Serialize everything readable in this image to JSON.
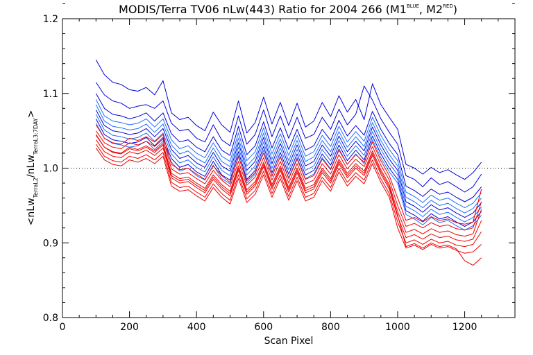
{
  "chart_data": {
    "type": "line",
    "title_parts": {
      "main": "MODIS/Terra TV06 nLw(443) Ratio for 2004 266 (M1",
      "sup1": "BLUE",
      "mid": ", M2",
      "sup2": "RED",
      "end": ")"
    },
    "xlabel": "Scan Pixel",
    "ylabel_parts": {
      "a": "<nLw",
      "sub1": "TerraL2",
      "b": "/nLw",
      "sub2": "TerraL3:7DAY",
      "c": ">"
    },
    "xlim": [
      0,
      1350
    ],
    "ylim": [
      0.8,
      1.2
    ],
    "xticks": [
      0,
      200,
      400,
      600,
      800,
      1000,
      1200
    ],
    "yticks": [
      0.8,
      0.9,
      1.0,
      1.1,
      1.2
    ],
    "ytick_labels": [
      "0.8",
      "0.9",
      "1.0",
      "1.1",
      "1.2"
    ],
    "reference_line": {
      "y": 1.0,
      "style": "dotted"
    },
    "series_colors": {
      "blue": "#0000dd",
      "light_blue": "#1e6eff",
      "red": "#ee0000"
    },
    "x": [
      100,
      125,
      150,
      175,
      200,
      225,
      250,
      275,
      300,
      325,
      350,
      375,
      400,
      425,
      450,
      475,
      500,
      525,
      550,
      575,
      600,
      625,
      650,
      675,
      700,
      725,
      750,
      775,
      800,
      825,
      850,
      875,
      900,
      925,
      950,
      975,
      1000,
      1025,
      1050,
      1075,
      1100,
      1125,
      1150,
      1175,
      1200,
      1225,
      1250
    ],
    "series": [
      {
        "color": "blue",
        "values": [
          1.145,
          1.125,
          1.115,
          1.112,
          1.105,
          1.103,
          1.108,
          1.098,
          1.117,
          1.074,
          1.065,
          1.068,
          1.057,
          1.05,
          1.075,
          1.058,
          1.048,
          1.09,
          1.047,
          1.061,
          1.095,
          1.059,
          1.088,
          1.057,
          1.087,
          1.055,
          1.063,
          1.088,
          1.069,
          1.097,
          1.075,
          1.092,
          1.065,
          1.113,
          1.085,
          1.068,
          1.052,
          1.005,
          1.0,
          0.992,
          1.001,
          0.994,
          0.998,
          0.991,
          0.985,
          0.994,
          1.008
        ]
      },
      {
        "color": "blue",
        "values": [
          1.115,
          1.098,
          1.09,
          1.087,
          1.08,
          1.083,
          1.085,
          1.08,
          1.09,
          1.06,
          1.05,
          1.052,
          1.04,
          1.035,
          1.058,
          1.038,
          1.03,
          1.07,
          1.032,
          1.045,
          1.078,
          1.042,
          1.07,
          1.04,
          1.068,
          1.04,
          1.045,
          1.068,
          1.052,
          1.079,
          1.058,
          1.072,
          1.11,
          1.091,
          1.066,
          1.048,
          1.032,
          0.99,
          0.985,
          0.975,
          0.987,
          0.978,
          0.982,
          0.975,
          0.968,
          0.975,
          0.992
        ]
      },
      {
        "color": "blue",
        "values": [
          1.1,
          1.08,
          1.072,
          1.07,
          1.066,
          1.069,
          1.074,
          1.063,
          1.074,
          1.046,
          1.035,
          1.038,
          1.028,
          1.022,
          1.042,
          1.024,
          1.017,
          1.056,
          1.018,
          1.03,
          1.062,
          1.027,
          1.054,
          1.025,
          1.052,
          1.024,
          1.03,
          1.052,
          1.037,
          1.064,
          1.043,
          1.057,
          1.044,
          1.076,
          1.052,
          1.033,
          1.018,
          0.976,
          0.97,
          0.962,
          0.972,
          0.965,
          0.968,
          0.961,
          0.955,
          0.961,
          0.975
        ]
      },
      {
        "color": "light_blue",
        "values": [
          1.092,
          1.07,
          1.063,
          1.061,
          1.058,
          1.06,
          1.066,
          1.055,
          1.066,
          1.038,
          1.026,
          1.03,
          1.02,
          1.014,
          1.034,
          1.016,
          1.009,
          1.047,
          1.01,
          1.022,
          1.054,
          1.019,
          1.046,
          1.017,
          1.044,
          1.016,
          1.022,
          1.044,
          1.029,
          1.056,
          1.035,
          1.049,
          1.036,
          1.068,
          1.044,
          1.025,
          1.01,
          0.968,
          0.962,
          0.954,
          0.964,
          0.957,
          0.96,
          0.953,
          0.947,
          0.953,
          0.967
        ]
      },
      {
        "color": "light_blue",
        "values": [
          1.085,
          1.063,
          1.056,
          1.054,
          1.051,
          1.053,
          1.059,
          1.048,
          1.059,
          1.031,
          1.019,
          1.023,
          1.013,
          1.007,
          1.027,
          1.009,
          1.002,
          1.04,
          1.003,
          1.015,
          1.047,
          1.012,
          1.039,
          1.01,
          1.037,
          1.009,
          1.015,
          1.037,
          1.022,
          1.049,
          1.028,
          1.042,
          1.029,
          1.061,
          1.037,
          1.018,
          1.003,
          0.961,
          0.955,
          0.947,
          0.957,
          0.95,
          0.953,
          0.946,
          0.94,
          0.946,
          0.96
        ]
      },
      {
        "color": "blue",
        "values": [
          1.078,
          1.057,
          1.05,
          1.048,
          1.045,
          1.047,
          1.053,
          1.042,
          1.053,
          1.025,
          1.013,
          1.017,
          1.007,
          1.001,
          1.021,
          1.003,
          0.996,
          1.034,
          0.997,
          1.009,
          1.041,
          1.006,
          1.033,
          1.004,
          1.031,
          1.003,
          1.009,
          1.031,
          1.016,
          1.043,
          1.022,
          1.036,
          1.023,
          1.055,
          1.031,
          1.012,
          0.997,
          0.955,
          0.949,
          0.941,
          0.951,
          0.944,
          0.947,
          0.94,
          0.934,
          0.94,
          0.954
        ]
      },
      {
        "color": "light_blue",
        "values": [
          1.072,
          1.051,
          1.044,
          1.042,
          1.039,
          1.041,
          1.047,
          1.036,
          1.047,
          1.019,
          1.007,
          1.011,
          1.001,
          0.995,
          1.015,
          0.997,
          0.99,
          1.028,
          0.991,
          1.003,
          1.035,
          1.0,
          1.027,
          0.998,
          1.025,
          0.997,
          1.003,
          1.025,
          1.01,
          1.037,
          1.016,
          1.03,
          1.017,
          1.049,
          1.025,
          1.006,
          0.991,
          0.949,
          0.943,
          0.935,
          0.945,
          0.938,
          0.941,
          0.934,
          0.928,
          0.934,
          0.948
        ]
      },
      {
        "color": "blue",
        "values": [
          1.066,
          1.045,
          1.038,
          1.036,
          1.033,
          1.035,
          1.041,
          1.03,
          1.041,
          1.013,
          1.001,
          1.005,
          0.995,
          0.989,
          1.009,
          0.991,
          0.984,
          1.022,
          0.985,
          0.997,
          1.029,
          0.994,
          1.021,
          0.992,
          1.019,
          0.991,
          0.997,
          1.019,
          1.004,
          1.031,
          1.01,
          1.024,
          1.011,
          1.043,
          1.019,
          1.0,
          0.985,
          0.943,
          0.937,
          0.929,
          0.939,
          0.932,
          0.935,
          0.928,
          0.922,
          0.928,
          0.942
        ]
      },
      {
        "color": "light_blue",
        "values": [
          1.06,
          1.04,
          1.033,
          1.031,
          1.028,
          1.03,
          1.036,
          1.025,
          1.036,
          1.008,
          0.996,
          1.0,
          0.99,
          0.984,
          1.004,
          0.986,
          0.979,
          1.017,
          0.98,
          0.992,
          1.024,
          0.989,
          1.016,
          0.987,
          1.014,
          0.986,
          0.992,
          1.014,
          0.999,
          1.026,
          1.005,
          1.019,
          1.006,
          1.038,
          1.014,
          0.995,
          0.98,
          0.938,
          0.932,
          0.924,
          0.934,
          0.927,
          0.93,
          0.923,
          0.917,
          0.923,
          0.937
        ]
      },
      {
        "color": "red",
        "values": [
          1.058,
          1.04,
          1.034,
          1.032,
          1.04,
          1.037,
          1.042,
          1.035,
          1.045,
          1.005,
          0.998,
          1.0,
          0.992,
          0.985,
          1.003,
          0.99,
          0.981,
          1.015,
          0.983,
          0.994,
          1.02,
          0.99,
          1.015,
          0.986,
          1.012,
          0.985,
          0.99,
          1.012,
          0.998,
          1.024,
          1.005,
          1.018,
          1.008,
          1.035,
          1.01,
          0.99,
          0.96,
          0.93,
          0.934,
          0.928,
          0.935,
          0.93,
          0.932,
          0.927,
          0.925,
          0.928,
          0.972
        ]
      },
      {
        "color": "red",
        "values": [
          1.05,
          1.034,
          1.028,
          1.026,
          1.034,
          1.031,
          1.036,
          1.029,
          1.039,
          0.999,
          0.992,
          0.994,
          0.986,
          0.979,
          0.997,
          0.984,
          0.975,
          1.009,
          0.977,
          0.988,
          1.014,
          0.984,
          1.009,
          0.98,
          1.006,
          0.979,
          0.984,
          1.006,
          0.992,
          1.018,
          0.999,
          1.012,
          1.002,
          1.029,
          1.004,
          0.984,
          0.95,
          0.922,
          0.926,
          0.92,
          0.927,
          0.922,
          0.924,
          0.919,
          0.917,
          0.92,
          0.955
        ]
      },
      {
        "color": "red",
        "values": [
          1.044,
          1.028,
          1.022,
          1.02,
          1.028,
          1.025,
          1.03,
          1.023,
          1.033,
          0.993,
          0.986,
          0.988,
          0.98,
          0.973,
          0.991,
          0.978,
          0.969,
          1.003,
          0.971,
          0.982,
          1.008,
          0.978,
          1.003,
          0.974,
          1.0,
          0.973,
          0.978,
          1.0,
          0.986,
          1.012,
          0.993,
          1.006,
          0.996,
          1.023,
          0.998,
          0.978,
          0.942,
          0.914,
          0.918,
          0.912,
          0.919,
          0.914,
          0.916,
          0.911,
          0.909,
          0.912,
          0.945
        ]
      },
      {
        "color": "red",
        "values": [
          1.038,
          1.022,
          1.016,
          1.014,
          1.022,
          1.019,
          1.024,
          1.017,
          1.027,
          0.987,
          0.98,
          0.982,
          0.974,
          0.967,
          0.985,
          0.972,
          0.963,
          0.997,
          0.965,
          0.976,
          1.002,
          0.972,
          0.997,
          0.968,
          0.994,
          0.967,
          0.972,
          0.994,
          0.98,
          1.006,
          0.987,
          1.0,
          0.99,
          1.017,
          0.992,
          0.972,
          0.935,
          0.907,
          0.911,
          0.905,
          0.912,
          0.907,
          0.909,
          0.904,
          0.902,
          0.905,
          0.93
        ]
      },
      {
        "color": "red",
        "values": [
          1.032,
          1.016,
          1.01,
          1.008,
          1.016,
          1.013,
          1.018,
          1.011,
          1.021,
          0.981,
          0.974,
          0.976,
          0.968,
          0.961,
          0.979,
          0.966,
          0.957,
          0.991,
          0.959,
          0.97,
          0.996,
          0.966,
          0.991,
          0.962,
          0.988,
          0.961,
          0.966,
          0.988,
          0.974,
          1.0,
          0.981,
          0.994,
          0.984,
          1.011,
          0.986,
          0.966,
          0.928,
          0.9,
          0.904,
          0.898,
          0.905,
          0.9,
          0.902,
          0.897,
          0.895,
          0.898,
          0.915
        ]
      },
      {
        "color": "red",
        "values": [
          1.027,
          1.011,
          1.005,
          1.003,
          1.011,
          1.008,
          1.013,
          1.006,
          1.016,
          0.976,
          0.969,
          0.971,
          0.963,
          0.956,
          0.974,
          0.961,
          0.952,
          0.986,
          0.954,
          0.965,
          0.991,
          0.961,
          0.986,
          0.957,
          0.983,
          0.956,
          0.961,
          0.983,
          0.969,
          0.995,
          0.976,
          0.989,
          0.979,
          1.006,
          0.981,
          0.961,
          0.92,
          0.893,
          0.897,
          0.891,
          0.898,
          0.893,
          0.895,
          0.89,
          0.886,
          0.888,
          0.898
        ]
      },
      {
        "color": "red",
        "values": [
          1.045,
          1.028,
          1.021,
          1.019,
          1.026,
          1.023,
          1.028,
          1.021,
          1.031,
          0.99,
          0.983,
          0.985,
          0.977,
          0.97,
          0.988,
          0.975,
          0.966,
          1.0,
          0.968,
          0.979,
          1.005,
          0.975,
          1.0,
          0.971,
          0.997,
          0.97,
          0.975,
          0.997,
          0.983,
          1.009,
          0.99,
          1.003,
          0.993,
          1.02,
          0.995,
          0.975,
          0.937,
          0.895,
          0.899,
          0.893,
          0.9,
          0.895,
          0.897,
          0.892,
          0.876,
          0.87,
          0.88
        ]
      }
    ]
  }
}
